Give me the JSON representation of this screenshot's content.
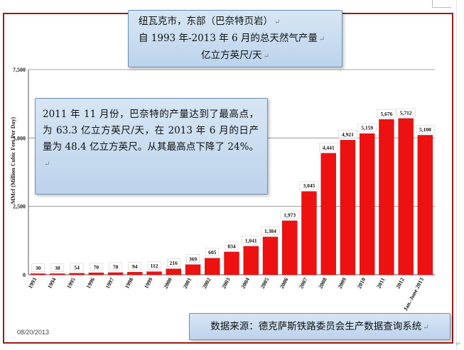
{
  "title_box": {
    "line1": "纽瓦克市，东部（巴奈特页岩）",
    "line2": "自 1993 年-2013 年 6 月的总天然气产量",
    "line3": "亿立方英尺/天"
  },
  "note_box": {
    "text": "2011 年 11 月份，巴奈特的产量达到了最高点，为 63.3 亿立方英尺/天，在 2013 年 6 月的日产量为 48.4 亿立方英尺。从其最高点下降了 24%。"
  },
  "source_box": {
    "text": "数据来源：德克萨斯铁路委员会生产数据查询系统"
  },
  "date_label": "08/20/2013",
  "paragraph_mark": "↵",
  "chart_data": {
    "type": "bar",
    "title": "",
    "ylabel": "MMcf (Million Cubic Feet Per Day)",
    "xlabel": "",
    "ylim": [
      0,
      7500
    ],
    "yticks": [
      0,
      2500,
      5000,
      7500
    ],
    "ytick_labels": [
      "0",
      "2,500",
      "5,000",
      "7,500"
    ],
    "grid": true,
    "categories": [
      "1993",
      "1994",
      "1995",
      "1996",
      "1997",
      "1998",
      "1999",
      "2000",
      "2001",
      "2002",
      "2003",
      "2004",
      "2005",
      "2006",
      "2007",
      "2008",
      "2009",
      "2010",
      "2011",
      "2012",
      "Jan.-June 2013"
    ],
    "values": [
      30,
      38,
      54,
      70,
      78,
      94,
      112,
      216,
      369,
      605,
      834,
      1041,
      1384,
      1973,
      3045,
      4441,
      4921,
      5159,
      5676,
      5712,
      5100
    ],
    "value_labels": [
      "30",
      "38",
      "54",
      "70",
      "78",
      "94",
      "112",
      "216",
      "369",
      "605",
      "834",
      "1,041",
      "1,384",
      "1,973",
      "3,045",
      "4,441",
      "4,921",
      "5,159",
      "5,676",
      "5,712",
      "5,100"
    ],
    "bar_color": "#ee1111"
  }
}
